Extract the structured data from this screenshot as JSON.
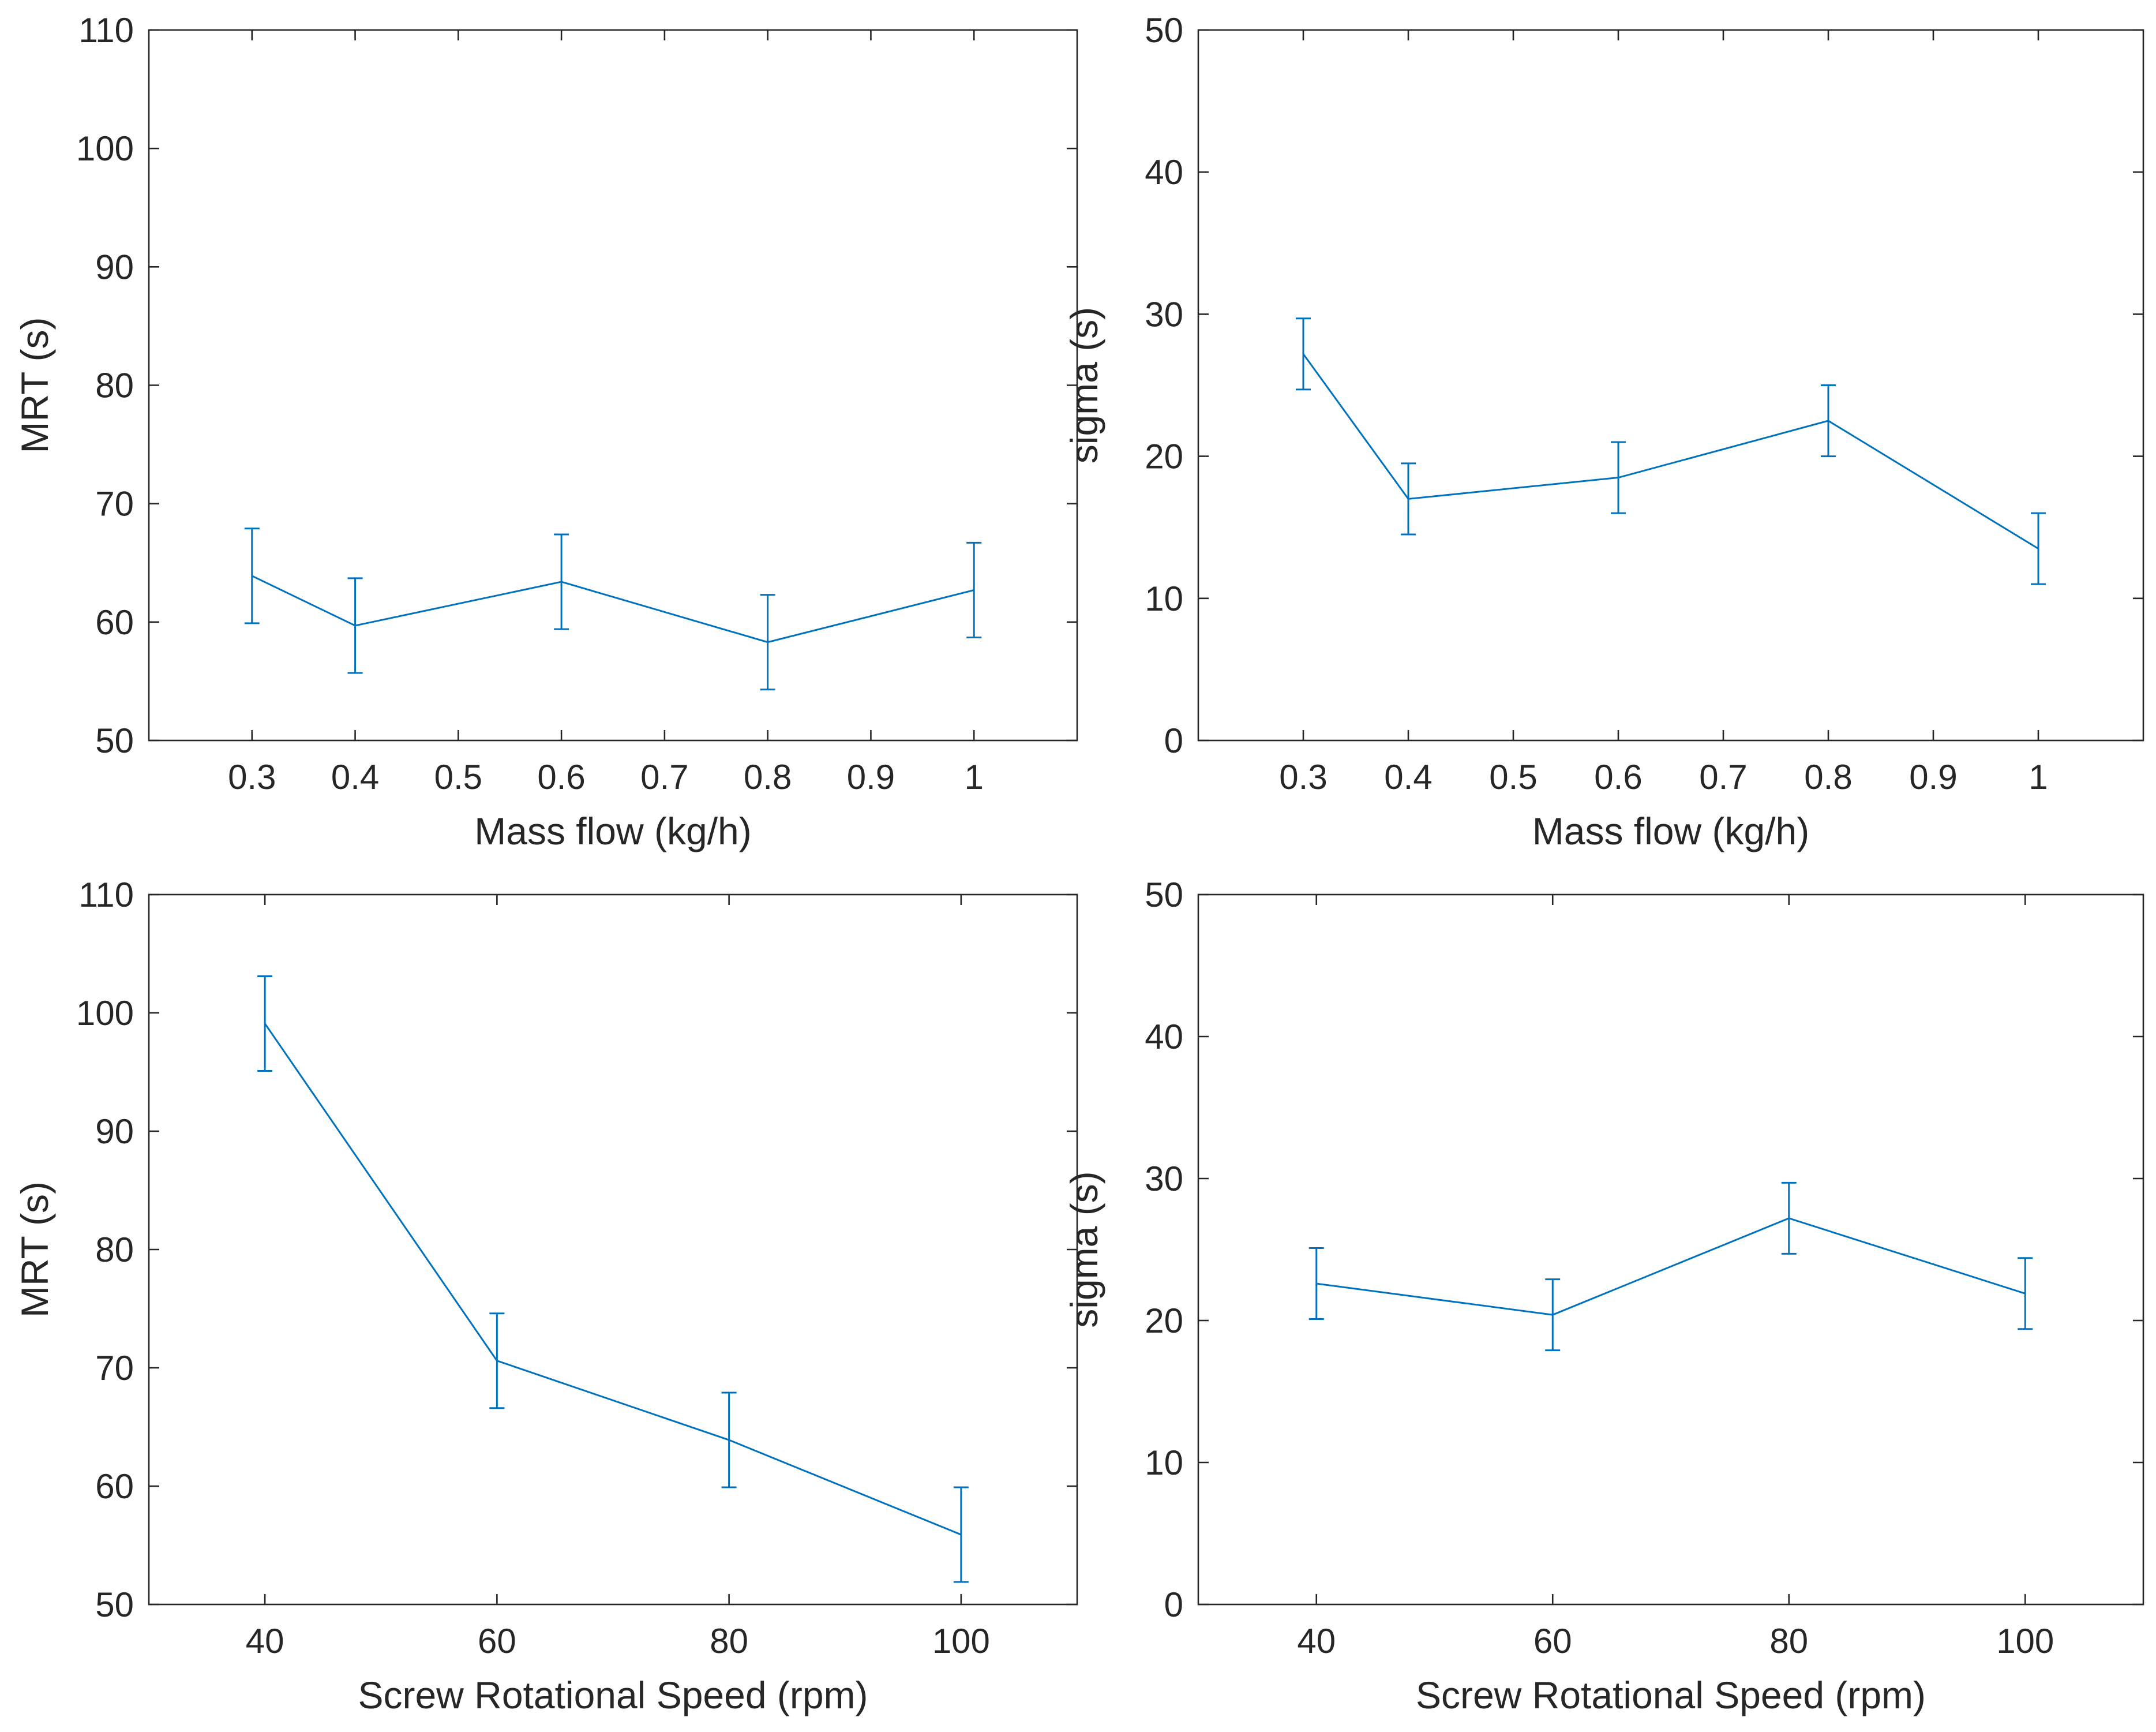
{
  "figure": {
    "line_color": "#0072BD",
    "axis_color": "#262626",
    "background": "#ffffff"
  },
  "chart_data": [
    {
      "id": "mrt-massflow",
      "type": "line",
      "errorbars": true,
      "xlabel": "Mass flow (kg/h)",
      "ylabel": "MRT (s)",
      "xlim": [
        0.2,
        1.1
      ],
      "ylim": [
        50,
        110
      ],
      "xticks": [
        0.3,
        0.4,
        0.5,
        0.6,
        0.7,
        0.8,
        0.9,
        1
      ],
      "xtick_labels": [
        "0.3",
        "0.4",
        "0.5",
        "0.6",
        "0.7",
        "0.8",
        "0.9",
        "1"
      ],
      "yticks": [
        50,
        60,
        70,
        80,
        90,
        100,
        110
      ],
      "ytick_labels": [
        "50",
        "60",
        "70",
        "80",
        "90",
        "100",
        "110"
      ],
      "x": [
        0.3,
        0.4,
        0.6,
        0.8,
        1.0
      ],
      "y": [
        63.9,
        59.7,
        63.4,
        58.3,
        62.7
      ],
      "err": [
        4,
        4,
        4,
        4,
        4
      ]
    },
    {
      "id": "sigma-massflow",
      "type": "line",
      "errorbars": true,
      "xlabel": "Mass flow (kg/h)",
      "ylabel": "sigma (s)",
      "xlim": [
        0.2,
        1.1
      ],
      "ylim": [
        0,
        50
      ],
      "xticks": [
        0.3,
        0.4,
        0.5,
        0.6,
        0.7,
        0.8,
        0.9,
        1
      ],
      "xtick_labels": [
        "0.3",
        "0.4",
        "0.5",
        "0.6",
        "0.7",
        "0.8",
        "0.9",
        "1"
      ],
      "yticks": [
        0,
        10,
        20,
        30,
        40,
        50
      ],
      "ytick_labels": [
        "0",
        "10",
        "20",
        "30",
        "40",
        "50"
      ],
      "x": [
        0.3,
        0.4,
        0.6,
        0.8,
        1.0
      ],
      "y": [
        27.2,
        17.0,
        18.5,
        22.5,
        13.5
      ],
      "err": [
        2.5,
        2.5,
        2.5,
        2.5,
        2.5
      ]
    },
    {
      "id": "mrt-speed",
      "type": "line",
      "errorbars": true,
      "xlabel": "Screw Rotational Speed (rpm)",
      "ylabel": "MRT (s)",
      "xlim": [
        30,
        110
      ],
      "ylim": [
        50,
        110
      ],
      "xticks": [
        40,
        60,
        80,
        100
      ],
      "xtick_labels": [
        "40",
        "60",
        "80",
        "100"
      ],
      "yticks": [
        50,
        60,
        70,
        80,
        90,
        100,
        110
      ],
      "ytick_labels": [
        "50",
        "60",
        "70",
        "80",
        "90",
        "100",
        "110"
      ],
      "x": [
        40,
        60,
        80,
        100
      ],
      "y": [
        99.1,
        70.6,
        63.9,
        55.9
      ],
      "err": [
        4,
        4,
        4,
        4
      ]
    },
    {
      "id": "sigma-speed",
      "type": "line",
      "errorbars": true,
      "xlabel": "Screw Rotational Speed (rpm)",
      "ylabel": "sigma (s)",
      "xlim": [
        30,
        110
      ],
      "ylim": [
        0,
        50
      ],
      "xticks": [
        40,
        60,
        80,
        100
      ],
      "xtick_labels": [
        "40",
        "60",
        "80",
        "100"
      ],
      "yticks": [
        0,
        10,
        20,
        30,
        40,
        50
      ],
      "ytick_labels": [
        "0",
        "10",
        "20",
        "30",
        "40",
        "50"
      ],
      "x": [
        40,
        60,
        80,
        100
      ],
      "y": [
        22.6,
        20.4,
        27.2,
        21.9
      ],
      "err": [
        2.5,
        2.5,
        2.5,
        2.5
      ]
    }
  ]
}
